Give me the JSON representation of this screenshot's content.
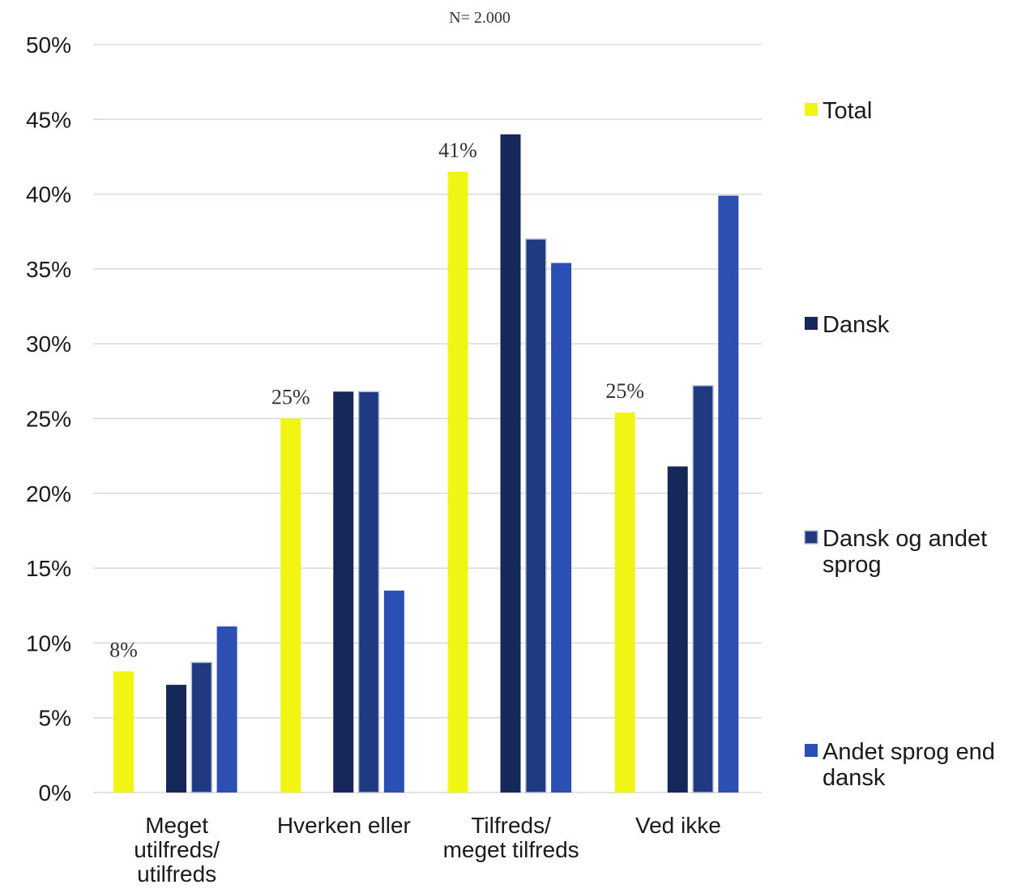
{
  "chart_data": {
    "type": "bar",
    "title": "",
    "subtitle": "N= 2.000",
    "xlabel": "",
    "ylabel": "",
    "ylim": [
      0,
      0.5
    ],
    "yticks": [
      "0%",
      "5%",
      "10%",
      "15%",
      "20%",
      "25%",
      "30%",
      "35%",
      "40%",
      "45%",
      "50%"
    ],
    "grid": true,
    "legend_position": "right",
    "categories": [
      [
        "Meget",
        "utilfreds/",
        "utilfreds"
      ],
      [
        "Hverken eller"
      ],
      [
        "Tilfreds/",
        "meget tilfreds"
      ],
      [
        "Ved ikke"
      ]
    ],
    "series": [
      {
        "name": "Total",
        "legend_lines": [
          "Total"
        ],
        "color": "#f0f514",
        "values": [
          0.081,
          0.25,
          0.415,
          0.254
        ],
        "labels": [
          "8%",
          "25%",
          "41%",
          "25%"
        ]
      },
      {
        "name": "Dansk",
        "legend_lines": [
          "Dansk"
        ],
        "color": "#16285a",
        "values": [
          0.072,
          0.268,
          0.44,
          0.218
        ],
        "labels": []
      },
      {
        "name": "Dansk og andet sprog",
        "legend_lines": [
          "Dansk og andet",
          "sprog"
        ],
        "color": "#203a82",
        "values": [
          0.087,
          0.268,
          0.37,
          0.272
        ],
        "labels": []
      },
      {
        "name": "Andet sprog end dansk",
        "legend_lines": [
          "Andet sprog end",
          "dansk"
        ],
        "color": "#2b4fb2",
        "values": [
          0.111,
          0.135,
          0.354,
          0.399
        ],
        "labels": []
      }
    ]
  }
}
